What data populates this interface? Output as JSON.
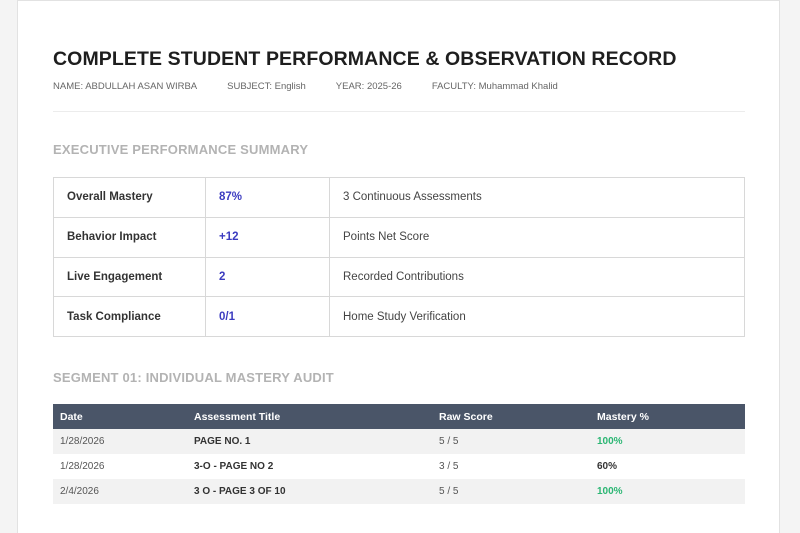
{
  "header": {
    "title": "COMPLETE STUDENT PERFORMANCE & OBSERVATION RECORD",
    "name": "NAME: ABDULLAH ASAN WIRBA",
    "subject": "SUBJECT: English",
    "year": "YEAR: 2025-26",
    "faculty": "FACULTY: Muhammad Khalid"
  },
  "summary": {
    "title": "EXECUTIVE PERFORMANCE SUMMARY",
    "rows": [
      {
        "label": "Overall Mastery",
        "value": "87%",
        "desc": "3 Continuous Assessments"
      },
      {
        "label": "Behavior Impact",
        "value": "+12",
        "desc": "Points Net Score"
      },
      {
        "label": "Live Engagement",
        "value": "2",
        "desc": "Recorded Contributions"
      },
      {
        "label": "Task Compliance",
        "value": "0/1",
        "desc": "Home Study Verification"
      }
    ]
  },
  "audit": {
    "title": "SEGMENT 01: INDIVIDUAL MASTERY AUDIT",
    "columns": [
      "Date",
      "Assessment Title",
      "Raw Score",
      "Mastery %"
    ],
    "rows": [
      {
        "date": "1/28/2026",
        "title": "PAGE NO. 1",
        "score": "5 / 5",
        "mastery": "100%",
        "color": "#2bb673"
      },
      {
        "date": "1/28/2026",
        "title": "3-O - PAGE NO 2",
        "score": "3 / 5",
        "mastery": "60%",
        "color": "#333333"
      },
      {
        "date": "2/4/2026",
        "title": "3 O - PAGE 3 OF 10",
        "score": "5 / 5",
        "mastery": "100%",
        "color": "#2bb673"
      }
    ]
  }
}
